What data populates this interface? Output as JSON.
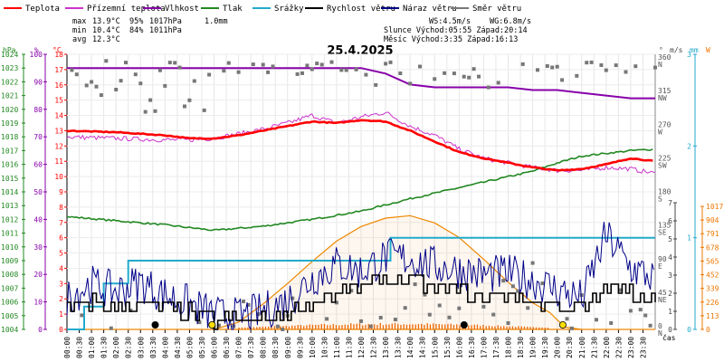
{
  "chart_data": {
    "type": "line",
    "title": "25.4.2025",
    "legend": [
      {
        "name": "Teplota",
        "color": "#ff0000"
      },
      {
        "name": "Přízemní teplota",
        "color": "#cc33cc"
      },
      {
        "name": "Vlhkost",
        "color": "#8800aa"
      },
      {
        "name": "Tlak",
        "color": "#228822"
      },
      {
        "name": "Srážky",
        "color": "#22aacc"
      },
      {
        "name": "Rychlost větru",
        "color": "#000000"
      },
      {
        "name": "Náraz větru",
        "color": "#000088"
      },
      {
        "name": "Směr větru",
        "color": "#777777"
      }
    ],
    "stats": {
      "max": {
        "label": "max",
        "temp": "13.9°C",
        "hum": "95%",
        "press": "1017hPa",
        "rain": "1.0mm"
      },
      "min": {
        "label": "min",
        "temp": "10.4°C",
        "hum": "84%",
        "press": "1011hPa"
      },
      "avg": {
        "label": "avg",
        "temp": "12.3°C"
      },
      "wind": "WS:4.5m/s",
      "gust": "WG:6.8m/s",
      "sun": "Slunce Východ:05:55  Západ:20:14",
      "moon": "Měsíc  Východ:3:35  Západ:16:13"
    },
    "axes": {
      "hpa": {
        "label": "hPa",
        "ticks": [
          1004,
          1005,
          1006,
          1007,
          1008,
          1009,
          1010,
          1011,
          1012,
          1013,
          1014,
          1015,
          1016,
          1017,
          1018,
          1019,
          1020,
          1021,
          1022,
          1023,
          1024
        ],
        "color": "#228822"
      },
      "pct": {
        "label": "%",
        "ticks": [
          0,
          10,
          20,
          30,
          40,
          50,
          60,
          70,
          80,
          90,
          100
        ],
        "color": "#8800aa"
      },
      "temp": {
        "label": "°C",
        "ticks": [
          0,
          1,
          2,
          3,
          4,
          5,
          6,
          7,
          8,
          9,
          10,
          11,
          12,
          13,
          14,
          15,
          16,
          17,
          18
        ],
        "color": "#ff0000"
      },
      "dir": {
        "label": "°",
        "ticks": [
          {
            "v": "0",
            "t": "N"
          },
          {
            "v": "45",
            "t": "NE"
          },
          {
            "v": "90",
            "t": "E"
          },
          {
            "v": "135",
            "t": "SE"
          },
          {
            "v": "180",
            "t": "S"
          },
          {
            "v": "225",
            "t": "SW"
          },
          {
            "v": "270",
            "t": "W"
          },
          {
            "v": "315",
            "t": "NW"
          },
          {
            "v": "360",
            "t": "N"
          }
        ]
      },
      "ms": {
        "label": "m/s",
        "ticks": [
          0,
          1,
          2,
          3,
          4,
          5,
          6,
          7
        ]
      },
      "mm": {
        "label": "mm",
        "ticks": [
          0,
          1,
          2,
          3
        ],
        "color": "#22aacc"
      },
      "wm2": {
        "label": "W",
        "ticks": [
          0,
          113,
          226,
          339,
          452,
          565,
          678,
          791,
          904,
          1017
        ],
        "color": "#ee7700"
      },
      "time": {
        "label": "čas",
        "ticks": [
          "00:00",
          "00:30",
          "01:00",
          "01:30",
          "02:00",
          "02:30",
          "03:00",
          "03:30",
          "04:00",
          "04:30",
          "05:00",
          "05:30",
          "06:00",
          "06:30",
          "07:00",
          "07:30",
          "08:00",
          "08:30",
          "09:00",
          "09:30",
          "10:00",
          "10:30",
          "11:00",
          "11:30",
          "12:00",
          "12:30",
          "13:00",
          "13:30",
          "14:00",
          "14:30",
          "15:00",
          "15:30",
          "16:00",
          "16:30",
          "17:00",
          "17:30",
          "18:00",
          "18:30",
          "19:00",
          "19:30",
          "20:00",
          "20:30",
          "21:00",
          "21:30",
          "22:00",
          "22:30",
          "23:00",
          "23:30"
        ]
      }
    },
    "series": {
      "temperature": [
        [
          0,
          13.0
        ],
        [
          2,
          12.9
        ],
        [
          4,
          12.7
        ],
        [
          5,
          12.5
        ],
        [
          6,
          12.5
        ],
        [
          7,
          12.7
        ],
        [
          8,
          13.0
        ],
        [
          9,
          13.3
        ],
        [
          10,
          13.6
        ],
        [
          11,
          13.5
        ],
        [
          12,
          13.7
        ],
        [
          13,
          13.6
        ],
        [
          14,
          13.0
        ],
        [
          15,
          12.3
        ],
        [
          16,
          11.6
        ],
        [
          17,
          11.2
        ],
        [
          18,
          10.9
        ],
        [
          19,
          10.6
        ],
        [
          20,
          10.4
        ],
        [
          21,
          10.5
        ],
        [
          22,
          10.8
        ],
        [
          23,
          11.2
        ],
        [
          24,
          11.0
        ]
      ],
      "ground_temperature": [
        [
          0,
          12.6
        ],
        [
          2,
          12.5
        ],
        [
          4,
          12.4
        ],
        [
          5,
          12.4
        ],
        [
          6,
          12.5
        ],
        [
          7,
          12.8
        ],
        [
          8,
          13.1
        ],
        [
          9,
          13.5
        ],
        [
          10,
          14.0
        ],
        [
          11,
          13.5
        ],
        [
          12,
          13.9
        ],
        [
          13,
          14.2
        ],
        [
          14,
          13.3
        ],
        [
          15,
          12.7
        ],
        [
          16,
          11.8
        ],
        [
          17,
          11.2
        ],
        [
          18,
          10.9
        ],
        [
          19,
          10.6
        ],
        [
          20,
          10.4
        ],
        [
          21,
          10.4
        ],
        [
          22,
          10.6
        ],
        [
          23,
          10.5
        ],
        [
          24,
          10.2
        ]
      ],
      "humidity": [
        [
          0,
          95
        ],
        [
          10,
          95
        ],
        [
          12,
          95
        ],
        [
          13,
          93
        ],
        [
          14,
          89
        ],
        [
          15,
          88
        ],
        [
          16,
          88
        ],
        [
          17,
          88
        ],
        [
          18,
          88
        ],
        [
          19,
          87
        ],
        [
          20,
          87
        ],
        [
          21,
          86
        ],
        [
          22,
          85
        ],
        [
          23,
          84
        ],
        [
          24,
          84
        ]
      ],
      "pressure": [
        [
          0,
          1012.2
        ],
        [
          2,
          1011.9
        ],
        [
          4,
          1011.6
        ],
        [
          6,
          1011.2
        ],
        [
          8,
          1011.5
        ],
        [
          10,
          1012.0
        ],
        [
          12,
          1012.6
        ],
        [
          14,
          1013.5
        ],
        [
          16,
          1014.3
        ],
        [
          18,
          1015.1
        ],
        [
          19,
          1015.5
        ],
        [
          20,
          1016.1
        ],
        [
          21,
          1016.6
        ],
        [
          22,
          1016.8
        ],
        [
          23,
          1017.0
        ],
        [
          24,
          1017.1
        ]
      ],
      "rain_cumulative": [
        [
          0,
          0
        ],
        [
          0.7,
          0
        ],
        [
          0.7,
          0.25
        ],
        [
          1.5,
          0.25
        ],
        [
          1.5,
          0.5
        ],
        [
          2.5,
          0.5
        ],
        [
          2.5,
          0.75
        ],
        [
          13.2,
          0.75
        ],
        [
          13.2,
          1.0
        ],
        [
          24,
          1.0
        ]
      ],
      "wind_speed": [
        [
          0,
          1.0
        ],
        [
          1,
          1.5
        ],
        [
          2,
          1.2
        ],
        [
          3,
          1.5
        ],
        [
          4,
          1.0
        ],
        [
          5,
          0.9
        ],
        [
          6,
          0.5
        ],
        [
          7,
          0.5
        ],
        [
          8,
          0.6
        ],
        [
          9,
          0.9
        ],
        [
          10,
          1.5
        ],
        [
          11,
          2.0
        ],
        [
          12,
          2.3
        ],
        [
          13,
          2.8
        ],
        [
          14,
          2.6
        ],
        [
          15,
          2.3
        ],
        [
          16,
          2.1
        ],
        [
          17,
          1.8
        ],
        [
          18,
          1.9
        ],
        [
          19,
          1.6
        ],
        [
          20,
          1.3
        ],
        [
          21,
          1.1
        ],
        [
          22,
          2.3
        ],
        [
          23,
          2.0
        ],
        [
          24,
          1.8
        ]
      ],
      "wind_gust": [
        [
          0,
          1.8
        ],
        [
          1,
          2.5
        ],
        [
          2,
          2.1
        ],
        [
          3,
          2.6
        ],
        [
          4,
          1.9
        ],
        [
          5,
          1.4
        ],
        [
          6,
          0.8
        ],
        [
          7,
          0.7
        ],
        [
          8,
          1.0
        ],
        [
          9,
          1.6
        ],
        [
          10,
          2.8
        ],
        [
          11,
          3.6
        ],
        [
          12,
          3.2
        ],
        [
          13,
          4.0
        ],
        [
          14,
          3.9
        ],
        [
          15,
          3.5
        ],
        [
          16,
          3.3
        ],
        [
          17,
          3.0
        ],
        [
          18,
          3.1
        ],
        [
          19,
          2.7
        ],
        [
          20,
          2.2
        ],
        [
          21,
          1.7
        ],
        [
          22,
          5.2
        ],
        [
          23,
          3.4
        ],
        [
          24,
          2.8
        ]
      ],
      "solar_radiation": [
        [
          0,
          0
        ],
        [
          6,
          0
        ],
        [
          7,
          60
        ],
        [
          8,
          210
        ],
        [
          9,
          380
        ],
        [
          10,
          560
        ],
        [
          11,
          730
        ],
        [
          12,
          850
        ],
        [
          13,
          920
        ],
        [
          14,
          940
        ],
        [
          15,
          880
        ],
        [
          16,
          760
        ],
        [
          17,
          580
        ],
        [
          18,
          390
        ],
        [
          19,
          220
        ],
        [
          19.7,
          140
        ],
        [
          20.3,
          20
        ],
        [
          21,
          0
        ],
        [
          24,
          0
        ]
      ]
    },
    "astro_markers": [
      {
        "hour": 3.6,
        "kind": "moonrise",
        "color": "#000000"
      },
      {
        "hour": 5.92,
        "kind": "sunrise",
        "color": "#ffe000"
      },
      {
        "hour": 16.2,
        "kind": "moonset",
        "color": "#000000"
      },
      {
        "hour": 20.23,
        "kind": "sunset",
        "color": "#ffe000"
      }
    ]
  }
}
